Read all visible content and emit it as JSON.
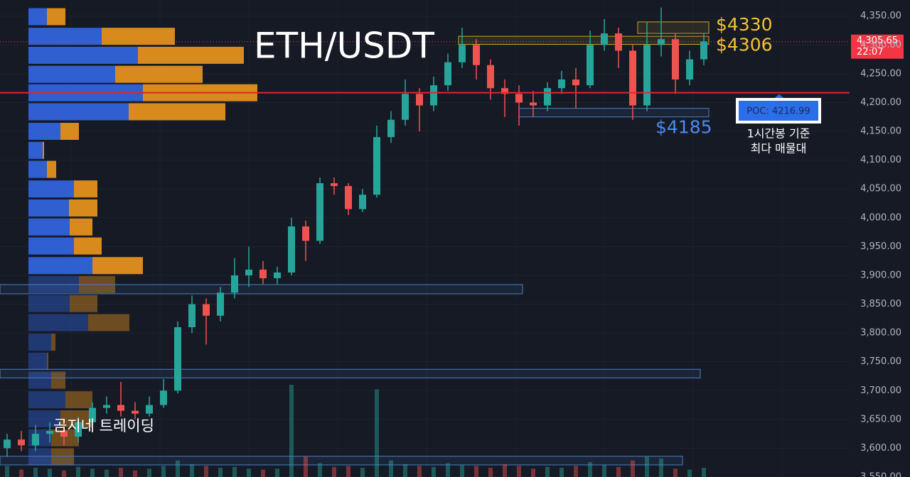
{
  "chart_data": {
    "type": "candlestick",
    "title": "ETH/USDT",
    "watermark": "곰지네 트레이딩",
    "categories": [
      null,
      null,
      null,
      null,
      null,
      null,
      null,
      null,
      null,
      null,
      null,
      null,
      null,
      null,
      null,
      null,
      null,
      null,
      null,
      null,
      null,
      null,
      null,
      null,
      null,
      null,
      null,
      null,
      null,
      null,
      null,
      null,
      null,
      null,
      null,
      null,
      null,
      null,
      null,
      null,
      null,
      null,
      null,
      null,
      null,
      null,
      null,
      null,
      null,
      null
    ],
    "open": [
      3600,
      3615,
      3605,
      3625,
      3630,
      3620,
      3645,
      3670,
      3675,
      3665,
      3660,
      3675,
      3700,
      3810,
      3850,
      3830,
      3870,
      3900,
      3910,
      3895,
      3905,
      3985,
      3960,
      4060,
      4055,
      4015,
      4040,
      4140,
      4170,
      4215,
      4195,
      4230,
      4270,
      4300,
      4265,
      4225,
      4215,
      4200,
      4195,
      4225,
      4240,
      4230,
      4300,
      4320,
      4290,
      4195,
      4300,
      4310,
      4240,
      4275
    ],
    "high": [
      3625,
      3630,
      3640,
      3645,
      3640,
      3655,
      3680,
      3690,
      3715,
      3680,
      3690,
      3720,
      3820,
      3865,
      3860,
      3880,
      3930,
      3950,
      3925,
      3915,
      4000,
      3995,
      4070,
      4070,
      4060,
      4050,
      4160,
      4185,
      4240,
      4225,
      4245,
      4285,
      4330,
      4310,
      4275,
      4240,
      4230,
      4220,
      4235,
      4255,
      4260,
      4325,
      4345,
      4330,
      4300,
      4340,
      4365,
      4320,
      4290,
      4320
    ],
    "low": [
      3585,
      3595,
      3595,
      3610,
      3605,
      3610,
      3640,
      3660,
      3655,
      3650,
      3655,
      3670,
      3695,
      3800,
      3780,
      3820,
      3860,
      3880,
      3885,
      3885,
      3900,
      3925,
      3955,
      4040,
      4005,
      4010,
      4035,
      4130,
      4160,
      4150,
      4185,
      4220,
      4260,
      4240,
      4205,
      4175,
      4160,
      4175,
      4185,
      4215,
      4190,
      4225,
      4290,
      4260,
      4170,
      4185,
      4280,
      4215,
      4230,
      4265
    ],
    "close": [
      3615,
      3605,
      3625,
      3630,
      3620,
      3645,
      3670,
      3675,
      3665,
      3660,
      3675,
      3700,
      3810,
      3850,
      3830,
      3870,
      3900,
      3910,
      3895,
      3905,
      3985,
      3960,
      4060,
      4055,
      4015,
      4040,
      4140,
      4170,
      4215,
      4195,
      4230,
      4270,
      4300,
      4265,
      4225,
      4215,
      4200,
      4195,
      4225,
      4240,
      4230,
      4300,
      4320,
      4290,
      4195,
      4300,
      4310,
      4240,
      4275,
      4306
    ],
    "volume": [
      12,
      8,
      10,
      9,
      7,
      11,
      9,
      8,
      10,
      7,
      9,
      12,
      18,
      14,
      12,
      10,
      11,
      9,
      8,
      9,
      100,
      22,
      15,
      11,
      12,
      10,
      95,
      18,
      14,
      12,
      11,
      15,
      13,
      12,
      10,
      14,
      12,
      9,
      11,
      10,
      12,
      16,
      13,
      11,
      18,
      22,
      20,
      9,
      8,
      10
    ],
    "up_color": "#26a69a",
    "down_color": "#ef5350",
    "ylim": [
      3550,
      4378
    ],
    "yticks": [
      {
        "value": 3550,
        "label": "3,550.00"
      },
      {
        "value": 3600,
        "label": "3,600.00"
      },
      {
        "value": 3650,
        "label": "3,650.00"
      },
      {
        "value": 3700,
        "label": "3,700.00"
      },
      {
        "value": 3750,
        "label": "3,750.00"
      },
      {
        "value": 3800,
        "label": "3,800.00"
      },
      {
        "value": 3850,
        "label": "3,850.00"
      },
      {
        "value": 3900,
        "label": "3,900.00"
      },
      {
        "value": 3950,
        "label": "3,950.00"
      },
      {
        "value": 4000,
        "label": "4,000.00"
      },
      {
        "value": 4050,
        "label": "4,050.00"
      },
      {
        "value": 4100,
        "label": "4,100.00"
      },
      {
        "value": 4150,
        "label": "4,150.00"
      },
      {
        "value": 4200,
        "label": "4,200.00"
      },
      {
        "value": 4250,
        "label": "4,250.00"
      },
      {
        "value": 4300,
        "label": "4,300.00"
      },
      {
        "value": 4350,
        "label": "4,350.00"
      }
    ],
    "current_price": {
      "value": 4305.65,
      "label": "4,305.65"
    },
    "countdown": "22:07",
    "poc": {
      "value": 4216.99,
      "label": "POC: 4216.99"
    },
    "poc_note": [
      "1시간봉 기준",
      "최다 매물대"
    ],
    "levels": [
      {
        "value": 4330,
        "label": "$4330"
      },
      {
        "value": 4306,
        "label": "$4306"
      },
      {
        "value": 4185,
        "label": "$4185"
      }
    ],
    "zones": [
      {
        "low": 4320,
        "high": 4340,
        "color": "#c9a227"
      },
      {
        "low": 4301,
        "high": 4315,
        "color": "#c9a227"
      },
      {
        "low": 4175,
        "high": 4190,
        "color": "#4a7fc1"
      },
      {
        "low": 3868,
        "high": 3884,
        "color": "#4a7fc1"
      },
      {
        "low": 3722,
        "high": 3737,
        "color": "#4a7fc1"
      },
      {
        "low": 3571,
        "high": 3586,
        "color": "#4a7fc1"
      }
    ],
    "volume_profile": {
      "price": [
        4349,
        4315,
        4282,
        4249,
        4217,
        4184,
        4150,
        4117,
        4084,
        4050,
        4017,
        3984,
        3951,
        3917,
        3884,
        3851,
        3818,
        3784,
        3751,
        3718,
        3684,
        3651,
        3618,
        3585
      ],
      "buy": [
        26,
        103,
        154,
        122,
        161,
        141,
        45,
        20,
        26,
        64,
        57,
        58,
        64,
        90,
        71,
        58,
        84,
        32,
        26,
        32,
        52,
        45,
        32,
        32
      ],
      "sell": [
        26,
        103,
        149,
        123,
        161,
        136,
        26,
        2,
        13,
        33,
        40,
        32,
        39,
        71,
        51,
        39,
        58,
        6,
        2,
        20,
        38,
        45,
        39,
        32
      ],
      "buy_color": "#2f5fd0",
      "sell_color": "#d98a1c",
      "value_area_low": 3900
    }
  }
}
